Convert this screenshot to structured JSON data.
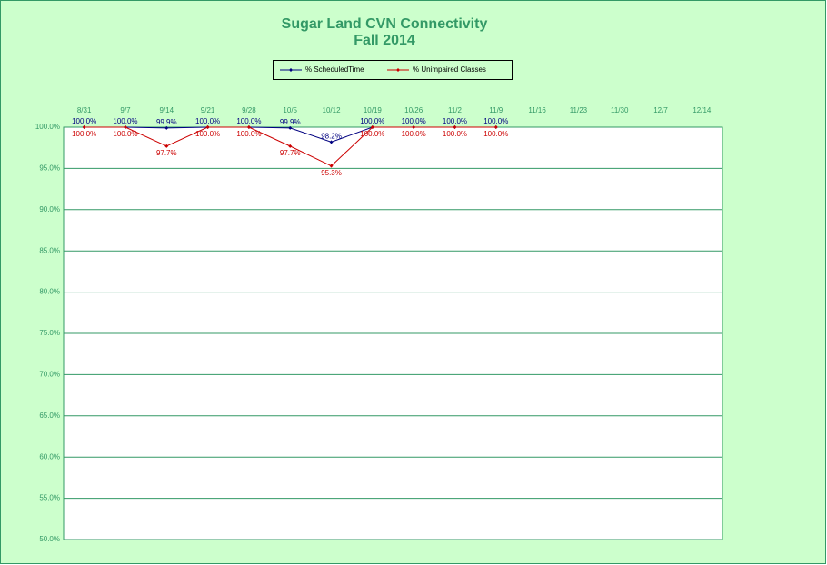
{
  "chart_data": {
    "type": "line",
    "title": "Sugar Land CVN Connectivity",
    "subtitle": "Fall 2014",
    "categories": [
      "8/31",
      "9/7",
      "9/14",
      "9/21",
      "9/28",
      "10/5",
      "10/12",
      "10/19",
      "10/26",
      "11/2",
      "11/9",
      "11/16",
      "11/23",
      "11/30",
      "12/7",
      "12/14"
    ],
    "series": [
      {
        "name": "% ScheduledTime",
        "color": "#000080",
        "values": [
          100,
          100,
          99.9,
          100,
          100,
          99.9,
          98.2,
          100,
          100,
          100,
          100,
          null,
          null,
          null,
          null,
          null
        ],
        "value_labels": [
          "100.0%",
          "100.0%",
          "99.9%",
          "100.0%",
          "100.0%",
          "99.9%",
          "98.2%",
          "100.0%",
          "100.0%",
          "100.0%",
          "100.0%",
          null,
          null,
          null,
          null,
          null
        ]
      },
      {
        "name": "% Unimpaired Classes",
        "color": "#cc0000",
        "values": [
          100,
          100,
          97.7,
          100,
          100,
          97.7,
          95.3,
          100,
          100,
          100,
          100,
          null,
          null,
          null,
          null,
          null
        ],
        "value_labels": [
          "100.0%",
          "100.0%",
          "97.7%",
          "100.0%",
          "100.0%",
          "97.7%",
          "95.3%",
          "100.0%",
          "100.0%",
          "100.0%",
          "100.0%",
          null,
          null,
          null,
          null,
          null
        ]
      }
    ],
    "ylim": [
      50,
      100
    ],
    "yticks": [
      {
        "value": 50,
        "label": "50.0%"
      },
      {
        "value": 55,
        "label": "55.0%"
      },
      {
        "value": 60,
        "label": "60.0%"
      },
      {
        "value": 65,
        "label": "65.0%"
      },
      {
        "value": 70,
        "label": "70.0%"
      },
      {
        "value": 75,
        "label": "75.0%"
      },
      {
        "value": 80,
        "label": "80.0%"
      },
      {
        "value": 85,
        "label": "85.0%"
      },
      {
        "value": 90,
        "label": "90.0%"
      },
      {
        "value": 95,
        "label": "95.0%"
      },
      {
        "value": 100,
        "label": "100.0%"
      }
    ],
    "grid": true,
    "legend": "top"
  }
}
